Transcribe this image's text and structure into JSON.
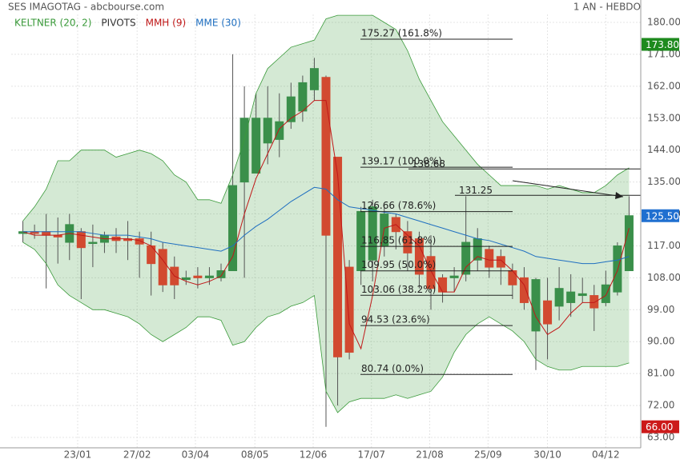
{
  "chart_data": {
    "type": "candlestick",
    "title": "SES IMAGOTAG - abcbourse.com",
    "period": "1 AN - HEBDO",
    "legend": [
      {
        "name": "KELTNER (20, 2)",
        "color": "#3a9a3a"
      },
      {
        "name": "PIVOTS",
        "color": "#333333"
      },
      {
        "name": "MMH (9)",
        "color": "#c01818"
      },
      {
        "name": "MME (30)",
        "color": "#1f6fc0"
      }
    ],
    "ylim": [
      63,
      180
    ],
    "xlim": [
      -1,
      53
    ],
    "yticks": [
      {
        "value": 180,
        "label": "180.00"
      },
      {
        "value": 171,
        "label": "171.00"
      },
      {
        "value": 162,
        "label": "162.00"
      },
      {
        "value": 153,
        "label": "153.00"
      },
      {
        "value": 144,
        "label": "144.00"
      },
      {
        "value": 135,
        "label": "135.00"
      },
      {
        "value": 126,
        "label": "126.00"
      },
      {
        "value": 117,
        "label": "117.00"
      },
      {
        "value": 108,
        "label": "108.00"
      },
      {
        "value": 99,
        "label": "99.00"
      },
      {
        "value": 90,
        "label": "90.00"
      },
      {
        "value": 81,
        "label": "81.00"
      },
      {
        "value": 72,
        "label": "72.00"
      },
      {
        "value": 63,
        "label": "63.00"
      }
    ],
    "xticks": [
      {
        "value": 4.7,
        "label": "23/01"
      },
      {
        "value": 9.8,
        "label": "27/02"
      },
      {
        "value": 14.8,
        "label": "03/04"
      },
      {
        "value": 19.9,
        "label": "08/05"
      },
      {
        "value": 24.9,
        "label": "12/06"
      },
      {
        "value": 29.9,
        "label": "17/07"
      },
      {
        "value": 34.9,
        "label": "21/08"
      },
      {
        "value": 39.9,
        "label": "25/09"
      },
      {
        "value": 45,
        "label": "30/10"
      },
      {
        "value": 50,
        "label": "04/12"
      }
    ],
    "up_color": "#3a8f4a",
    "down_color": "#d24a30",
    "candles": {
      "open": [
        120.5,
        121,
        121,
        120,
        118,
        121,
        118,
        118,
        119.5,
        119,
        119,
        117,
        116,
        111,
        107.5,
        108.5,
        108,
        108,
        110,
        135,
        137.5,
        146,
        147,
        152,
        155,
        161,
        164.5,
        142,
        111,
        110,
        113,
        117,
        125,
        121,
        119,
        114,
        108,
        108,
        109,
        113,
        116,
        114,
        110,
        108,
        93,
        101.5,
        100,
        101,
        103,
        103,
        101,
        104,
        110
      ],
      "high": [
        124,
        123,
        126,
        125,
        126,
        122,
        123,
        121,
        122,
        124,
        121,
        121,
        118,
        114,
        110,
        111,
        111,
        112,
        171,
        162,
        160,
        162,
        160,
        163,
        165,
        170,
        165,
        142,
        113,
        128,
        130,
        128,
        126,
        124,
        121,
        120,
        109,
        111,
        131,
        122,
        117,
        116,
        112,
        111,
        108,
        108,
        111,
        109,
        108,
        106,
        110,
        118,
        131
      ],
      "low": [
        118,
        119,
        105,
        112,
        113,
        102,
        111,
        115,
        115,
        113,
        108,
        103,
        104,
        102,
        106,
        105,
        106,
        107,
        110,
        108,
        140,
        140,
        142,
        150,
        152,
        158,
        66,
        72,
        85,
        106,
        107,
        114,
        116,
        110,
        105,
        99,
        101,
        104,
        107,
        110,
        108,
        106,
        102,
        99,
        82,
        85,
        96,
        97,
        101,
        93,
        100,
        103,
        110
      ],
      "close": [
        121,
        120.5,
        120,
        119.5,
        123,
        116.5,
        118,
        120,
        118.5,
        118.5,
        117.5,
        112,
        106,
        106,
        108,
        108,
        108.5,
        110,
        134,
        153,
        153,
        153,
        152,
        159,
        163,
        167,
        120,
        85.7,
        87,
        126.7,
        128,
        126,
        121,
        115,
        109,
        105,
        104,
        108.5,
        118,
        119,
        111,
        111,
        106,
        101,
        107.5,
        95,
        105,
        104,
        103.5,
        99.5,
        106,
        117,
        125.5
      ]
    },
    "series": [
      {
        "name": "KELTNER (20, 2)",
        "color": "#3a9a3a",
        "values": [
          124,
          128,
          133,
          141,
          141,
          144,
          144,
          144,
          142,
          143,
          144,
          143,
          141,
          137,
          135,
          130,
          130,
          129,
          137,
          147,
          160,
          167,
          170,
          173,
          174,
          175,
          181,
          182,
          182,
          182,
          182,
          180,
          178,
          172,
          164,
          158,
          152,
          148,
          144,
          140,
          137,
          134,
          134,
          134,
          134,
          133,
          134,
          133,
          132,
          132,
          134,
          137,
          139
        ]
      },
      {
        "name": "KELTNER (20, 2)",
        "color": "#3a9a3a",
        "values": [
          118,
          116,
          112,
          106,
          103,
          101,
          99,
          99,
          98,
          97,
          95,
          92,
          90,
          92,
          94,
          97,
          97,
          96,
          89,
          90,
          94,
          97,
          98,
          100,
          101,
          103,
          76,
          70,
          73,
          74,
          74,
          74,
          75,
          74,
          75,
          76,
          80,
          87,
          92,
          95,
          97,
          95,
          93,
          90,
          85,
          83,
          82,
          82,
          83,
          83,
          83,
          83,
          84
        ]
      },
      {
        "name": "MMH (9)",
        "color": "#c01818",
        "values": [
          121,
          120,
          120,
          120,
          120.5,
          120,
          119.5,
          119,
          119,
          119,
          118.5,
          117,
          113,
          108.5,
          107,
          106,
          107,
          108.5,
          114,
          126,
          136,
          143,
          150,
          153,
          155,
          158,
          158,
          137,
          95,
          88,
          103,
          122,
          123,
          120,
          117,
          110,
          104,
          104,
          111,
          114,
          113,
          113,
          110,
          106,
          97,
          92,
          94,
          98,
          101,
          101,
          103,
          110,
          122
        ]
      },
      {
        "name": "MME (30)",
        "color": "#1f6fc0",
        "values": [
          121,
          121,
          121,
          121,
          121,
          121,
          120.5,
          120,
          120,
          120,
          119.5,
          119,
          118,
          117.5,
          117,
          116.5,
          116,
          115.5,
          117,
          120,
          122.5,
          124.5,
          127,
          129.5,
          131.5,
          133.5,
          133,
          130,
          128,
          127.5,
          127,
          126.5,
          126,
          125,
          124,
          123,
          122,
          121,
          120,
          119,
          118.5,
          117.5,
          116.5,
          115.5,
          114,
          113.5,
          113,
          112.5,
          112,
          112,
          112.5,
          113,
          114
        ]
      }
    ],
    "fibonacci": [
      {
        "value": 175.27,
        "label": "175.27  (161.8%)"
      },
      {
        "value": 139.17,
        "label": "139.17  (100.0%)"
      },
      {
        "value": 126.66,
        "label": "126.66  (78.6%)"
      },
      {
        "value": 116.85,
        "label": "116.85  (61.8%)"
      },
      {
        "value": 109.95,
        "label": "109.95  (50.0%)"
      },
      {
        "value": 103.06,
        "label": "103.06  (38.2%)"
      },
      {
        "value": 94.53,
        "label": "94.53  (23.6%)"
      },
      {
        "value": 80.74,
        "label": "80.74  (0.0%)"
      }
    ],
    "pivots": [
      {
        "value": 138.68,
        "label": "138.68"
      },
      {
        "value": 131.25,
        "label": "131.25"
      }
    ],
    "price_tags": [
      {
        "value": 173.8,
        "label": "173.80",
        "color": "#1e8a1e"
      },
      {
        "value": 125.5,
        "label": "125.50",
        "color": "#1f6fd0"
      },
      {
        "value": 66,
        "label": "66.00",
        "color": "#cc1a1a"
      }
    ]
  }
}
